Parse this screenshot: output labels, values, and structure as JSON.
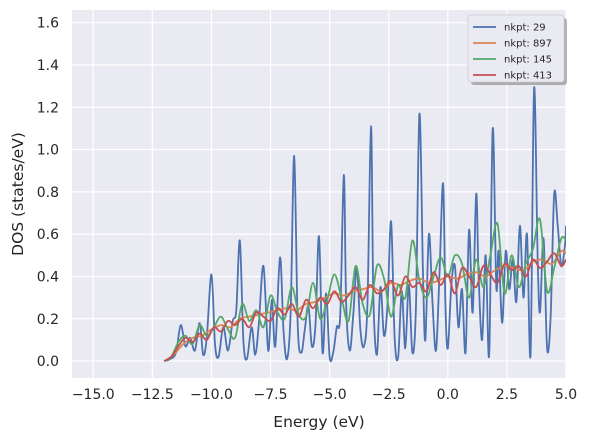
{
  "chart_data": {
    "type": "line",
    "title": "",
    "xlabel": "Energy (eV)",
    "ylabel": "DOS (states/eV)",
    "xlim": [
      -15.9,
      5.0
    ],
    "ylim": [
      -0.08,
      1.66
    ],
    "xticks": [
      -15.0,
      -12.5,
      -10.0,
      -7.5,
      -5.0,
      -2.5,
      0.0,
      2.5,
      5.0
    ],
    "xtick_labels": [
      "−15.0",
      "−12.5",
      "−10.0",
      "−7.5",
      "−5.0",
      "−2.5",
      "0.0",
      "2.5",
      "5.0"
    ],
    "yticks": [
      0.0,
      0.2,
      0.4,
      0.6,
      0.8,
      1.0,
      1.2,
      1.4,
      1.6
    ],
    "ytick_labels": [
      "0.0",
      "0.2",
      "0.4",
      "0.6",
      "0.8",
      "1.0",
      "1.2",
      "1.4",
      "1.6"
    ],
    "grid": true,
    "style": "seaborn-darkgrid",
    "plot_background": "#eaeaf2",
    "legend_placement": "upper right",
    "series": [
      {
        "name": "nkpt: 29",
        "color": "#4c72b0",
        "x": [
          -12.0,
          -11.75,
          -11.5,
          -11.3,
          -11.1,
          -10.9,
          -10.7,
          -10.5,
          -10.35,
          -10.2,
          -10.0,
          -9.85,
          -9.7,
          -9.5,
          -9.3,
          -9.1,
          -8.95,
          -8.8,
          -8.65,
          -8.5,
          -8.3,
          -8.15,
          -8.0,
          -7.8,
          -7.6,
          -7.45,
          -7.3,
          -7.1,
          -6.95,
          -6.8,
          -6.65,
          -6.5,
          -6.35,
          -6.2,
          -6.05,
          -5.9,
          -5.75,
          -5.6,
          -5.45,
          -5.3,
          -5.15,
          -5.0,
          -4.85,
          -4.7,
          -4.55,
          -4.4,
          -4.3,
          -4.15,
          -4.0,
          -3.85,
          -3.7,
          -3.55,
          -3.4,
          -3.25,
          -3.15,
          -3.0,
          -2.85,
          -2.7,
          -2.55,
          -2.4,
          -2.25,
          -2.1,
          -1.95,
          -1.8,
          -1.65,
          -1.5,
          -1.35,
          -1.2,
          -1.05,
          -0.95,
          -0.8,
          -0.65,
          -0.5,
          -0.35,
          -0.2,
          -0.1,
          0.0,
          0.15,
          0.3,
          0.45,
          0.6,
          0.75,
          0.9,
          1.05,
          1.2,
          1.3,
          1.45,
          1.6,
          1.75,
          1.9,
          2.05,
          2.15,
          2.3,
          2.45,
          2.6,
          2.75,
          2.9,
          3.05,
          3.2,
          3.35,
          3.5,
          3.65,
          3.8,
          3.9,
          4.05,
          4.2,
          4.35,
          4.5,
          4.65,
          4.8,
          4.95,
          5.0
        ],
        "y": [
          0.0,
          0.01,
          0.04,
          0.17,
          0.07,
          0.11,
          0.05,
          0.18,
          0.03,
          0.11,
          0.41,
          0.08,
          0.02,
          0.16,
          0.05,
          0.19,
          0.24,
          0.57,
          0.1,
          0.01,
          0.16,
          0.03,
          0.17,
          0.45,
          0.05,
          0.29,
          0.07,
          0.49,
          0.14,
          0.01,
          0.23,
          0.97,
          0.17,
          0.04,
          0.15,
          0.26,
          0.07,
          0.17,
          0.59,
          0.04,
          0.32,
          0.02,
          0.04,
          0.16,
          0.22,
          0.88,
          0.27,
          0.05,
          0.22,
          0.44,
          0.15,
          0.07,
          0.27,
          1.11,
          0.3,
          0.03,
          0.35,
          0.12,
          0.27,
          0.66,
          0.11,
          0.02,
          0.33,
          0.06,
          0.36,
          0.04,
          0.25,
          1.17,
          0.41,
          0.1,
          0.6,
          0.28,
          0.05,
          0.42,
          0.84,
          0.26,
          0.06,
          0.36,
          0.45,
          0.16,
          0.34,
          0.04,
          0.62,
          0.23,
          0.79,
          0.41,
          0.1,
          0.5,
          0.03,
          1.1,
          0.35,
          0.52,
          0.18,
          0.52,
          0.34,
          0.48,
          0.28,
          0.64,
          0.3,
          0.6,
          0.03,
          1.29,
          0.49,
          0.23,
          0.58,
          0.06,
          0.21,
          0.79,
          0.64,
          0.45,
          0.54,
          0.64
        ]
      },
      {
        "name": "nkpt: 897",
        "color": "#dd8452",
        "x": [
          -12.0,
          -11.6,
          -11.2,
          -10.8,
          -10.4,
          -10.0,
          -9.6,
          -9.2,
          -8.8,
          -8.4,
          -8.0,
          -7.6,
          -7.2,
          -6.8,
          -6.4,
          -6.0,
          -5.6,
          -5.2,
          -4.8,
          -4.4,
          -4.0,
          -3.6,
          -3.2,
          -2.8,
          -2.4,
          -2.0,
          -1.6,
          -1.2,
          -0.8,
          -0.4,
          0.0,
          0.4,
          0.8,
          1.2,
          1.6,
          2.0,
          2.4,
          2.8,
          3.2,
          3.6,
          4.0,
          4.4,
          4.8,
          5.0
        ],
        "y": [
          0.0,
          0.03,
          0.08,
          0.11,
          0.12,
          0.15,
          0.17,
          0.16,
          0.2,
          0.21,
          0.22,
          0.23,
          0.24,
          0.25,
          0.24,
          0.27,
          0.28,
          0.3,
          0.32,
          0.31,
          0.33,
          0.34,
          0.35,
          0.33,
          0.37,
          0.36,
          0.38,
          0.39,
          0.37,
          0.38,
          0.4,
          0.39,
          0.41,
          0.42,
          0.4,
          0.43,
          0.45,
          0.44,
          0.43,
          0.47,
          0.48,
          0.46,
          0.52,
          0.51
        ]
      },
      {
        "name": "nkpt: 145",
        "color": "#55a868",
        "x": [
          -12.0,
          -11.7,
          -11.4,
          -11.1,
          -10.8,
          -10.5,
          -10.2,
          -9.9,
          -9.6,
          -9.3,
          -9.0,
          -8.7,
          -8.4,
          -8.1,
          -7.8,
          -7.5,
          -7.2,
          -6.9,
          -6.6,
          -6.3,
          -6.0,
          -5.7,
          -5.4,
          -5.1,
          -4.8,
          -4.5,
          -4.2,
          -3.9,
          -3.6,
          -3.3,
          -3.0,
          -2.7,
          -2.4,
          -2.1,
          -1.8,
          -1.5,
          -1.2,
          -0.9,
          -0.6,
          -0.3,
          0.0,
          0.3,
          0.6,
          0.9,
          1.2,
          1.5,
          1.8,
          2.1,
          2.4,
          2.7,
          3.0,
          3.3,
          3.6,
          3.9,
          4.2,
          4.5,
          4.8,
          5.0
        ],
        "y": [
          0.0,
          0.02,
          0.09,
          0.12,
          0.08,
          0.17,
          0.12,
          0.16,
          0.21,
          0.15,
          0.11,
          0.27,
          0.19,
          0.24,
          0.16,
          0.31,
          0.23,
          0.2,
          0.35,
          0.22,
          0.21,
          0.37,
          0.2,
          0.29,
          0.41,
          0.3,
          0.19,
          0.45,
          0.27,
          0.22,
          0.45,
          0.39,
          0.21,
          0.36,
          0.3,
          0.57,
          0.38,
          0.3,
          0.4,
          0.49,
          0.4,
          0.5,
          0.46,
          0.3,
          0.48,
          0.35,
          0.5,
          0.65,
          0.32,
          0.5,
          0.35,
          0.46,
          0.53,
          0.67,
          0.33,
          0.44,
          0.58,
          0.57
        ]
      },
      {
        "name": "nkpt: 413",
        "color": "#c44e52",
        "x": [
          -12.0,
          -11.7,
          -11.4,
          -11.1,
          -10.8,
          -10.5,
          -10.2,
          -9.9,
          -9.6,
          -9.3,
          -9.0,
          -8.7,
          -8.4,
          -8.1,
          -7.8,
          -7.5,
          -7.2,
          -6.9,
          -6.6,
          -6.3,
          -6.0,
          -5.7,
          -5.4,
          -5.1,
          -4.8,
          -4.5,
          -4.2,
          -3.9,
          -3.6,
          -3.3,
          -3.0,
          -2.7,
          -2.4,
          -2.1,
          -1.8,
          -1.5,
          -1.2,
          -0.9,
          -0.6,
          -0.3,
          0.0,
          0.3,
          0.6,
          0.9,
          1.2,
          1.5,
          1.8,
          2.1,
          2.4,
          2.7,
          3.0,
          3.3,
          3.6,
          3.9,
          4.2,
          4.5,
          4.8,
          5.0
        ],
        "y": [
          0.0,
          0.02,
          0.07,
          0.11,
          0.09,
          0.13,
          0.1,
          0.16,
          0.14,
          0.19,
          0.17,
          0.2,
          0.16,
          0.23,
          0.21,
          0.19,
          0.25,
          0.22,
          0.27,
          0.21,
          0.29,
          0.25,
          0.3,
          0.27,
          0.33,
          0.28,
          0.31,
          0.35,
          0.29,
          0.36,
          0.32,
          0.34,
          0.38,
          0.31,
          0.4,
          0.35,
          0.37,
          0.33,
          0.42,
          0.36,
          0.41,
          0.32,
          0.44,
          0.4,
          0.35,
          0.45,
          0.41,
          0.37,
          0.46,
          0.43,
          0.45,
          0.4,
          0.48,
          0.44,
          0.47,
          0.51,
          0.45,
          0.48
        ]
      }
    ]
  }
}
